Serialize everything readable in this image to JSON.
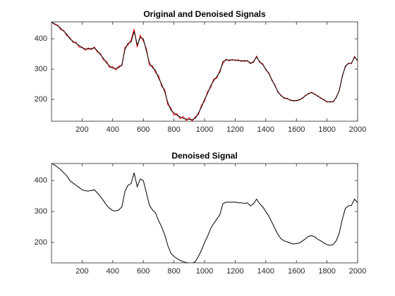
{
  "chart_data": [
    {
      "type": "line",
      "title": "Original and Denoised Signals",
      "x": [
        0,
        20,
        40,
        60,
        80,
        100,
        120,
        140,
        160,
        180,
        200,
        220,
        240,
        260,
        280,
        300,
        320,
        340,
        360,
        380,
        400,
        420,
        440,
        460,
        480,
        500,
        520,
        540,
        560,
        580,
        600,
        620,
        640,
        660,
        680,
        700,
        720,
        740,
        760,
        780,
        800,
        820,
        840,
        860,
        880,
        900,
        920,
        940,
        960,
        980,
        1000,
        1020,
        1040,
        1060,
        1080,
        1100,
        1120,
        1140,
        1160,
        1180,
        1200,
        1220,
        1240,
        1260,
        1280,
        1300,
        1320,
        1340,
        1360,
        1380,
        1400,
        1420,
        1440,
        1460,
        1480,
        1500,
        1520,
        1540,
        1560,
        1580,
        1600,
        1620,
        1640,
        1660,
        1680,
        1700,
        1720,
        1740,
        1760,
        1780,
        1800,
        1820,
        1840,
        1860,
        1880,
        1900,
        1920,
        1940,
        1960,
        1980,
        2000
      ],
      "series": [
        {
          "color": "#ff0000",
          "values": [
            456,
            447,
            446,
            430,
            428,
            410,
            404,
            388,
            389,
            372,
            373,
            362,
            370,
            364,
            373,
            356,
            352,
            330,
            325,
            305,
            308,
            297,
            310,
            311,
            372,
            380,
            396,
            432,
            372,
            412,
            393,
            368,
            312,
            311,
            288,
            278,
            243,
            232,
            182,
            172,
            148,
            153,
            136,
            144,
            130,
            140,
            128,
            143,
            150,
            181,
            194,
            226,
            239,
            268,
            270,
            296,
            318,
            333,
            327,
            332,
            328,
            331,
            325,
            329,
            326,
            321,
            322,
            343,
            322,
            318,
            297,
            288,
            262,
            248,
            222,
            214,
            203,
            204,
            196,
            197,
            195,
            200,
            203,
            214,
            218,
            224,
            216,
            212,
            203,
            200,
            191,
            193,
            191,
            207,
            228,
            278,
            307,
            320,
            318,
            342,
            326
          ]
        },
        {
          "color": "#000000",
          "values": [
            455,
            450,
            443,
            435,
            425,
            415,
            400,
            392,
            385,
            378,
            370,
            367,
            366,
            368,
            370,
            360,
            348,
            335,
            320,
            310,
            303,
            302,
            305,
            315,
            365,
            385,
            390,
            425,
            380,
            405,
            400,
            360,
            320,
            305,
            295,
            270,
            250,
            225,
            190,
            165,
            155,
            148,
            142,
            138,
            135,
            134,
            133,
            138,
            155,
            175,
            200,
            220,
            245,
            262,
            275,
            290,
            325,
            330,
            330,
            330,
            330,
            328,
            328,
            326,
            328,
            318,
            325,
            340,
            325,
            315,
            300,
            285,
            265,
            245,
            225,
            212,
            205,
            202,
            198,
            195,
            197,
            198,
            205,
            212,
            220,
            222,
            218,
            210,
            205,
            198,
            193,
            191,
            193,
            205,
            230,
            275,
            310,
            318,
            320,
            340,
            328
          ]
        }
      ],
      "xlim": [
        0,
        2000
      ],
      "ylim": [
        128,
        456
      ],
      "xticks": [
        200,
        400,
        600,
        800,
        1000,
        1200,
        1400,
        1600,
        1800,
        2000
      ],
      "yticks": [
        200,
        300,
        400
      ]
    },
    {
      "type": "line",
      "title": "Denoised Signal",
      "x": [
        0,
        20,
        40,
        60,
        80,
        100,
        120,
        140,
        160,
        180,
        200,
        220,
        240,
        260,
        280,
        300,
        320,
        340,
        360,
        380,
        400,
        420,
        440,
        460,
        480,
        500,
        520,
        540,
        560,
        580,
        600,
        620,
        640,
        660,
        680,
        700,
        720,
        740,
        760,
        780,
        800,
        820,
        840,
        860,
        880,
        900,
        920,
        940,
        960,
        980,
        1000,
        1020,
        1040,
        1060,
        1080,
        1100,
        1120,
        1140,
        1160,
        1180,
        1200,
        1220,
        1240,
        1260,
        1280,
        1300,
        1320,
        1340,
        1360,
        1380,
        1400,
        1420,
        1440,
        1460,
        1480,
        1500,
        1520,
        1540,
        1560,
        1580,
        1600,
        1620,
        1640,
        1660,
        1680,
        1700,
        1720,
        1740,
        1760,
        1780,
        1800,
        1820,
        1840,
        1860,
        1880,
        1900,
        1920,
        1940,
        1960,
        1980,
        2000
      ],
      "series": [
        {
          "color": "#000000",
          "values": [
            455,
            450,
            443,
            435,
            425,
            415,
            400,
            392,
            385,
            378,
            370,
            367,
            366,
            368,
            370,
            360,
            348,
            335,
            320,
            310,
            303,
            302,
            305,
            315,
            365,
            385,
            390,
            425,
            380,
            405,
            400,
            360,
            320,
            305,
            295,
            270,
            250,
            225,
            190,
            165,
            155,
            148,
            142,
            138,
            135,
            134,
            133,
            138,
            155,
            175,
            200,
            220,
            245,
            262,
            275,
            290,
            325,
            330,
            330,
            330,
            330,
            328,
            328,
            326,
            328,
            318,
            325,
            340,
            325,
            315,
            300,
            285,
            265,
            245,
            225,
            212,
            205,
            202,
            198,
            195,
            197,
            198,
            205,
            212,
            220,
            222,
            218,
            210,
            205,
            198,
            193,
            191,
            193,
            205,
            230,
            275,
            310,
            318,
            320,
            340,
            328
          ]
        }
      ],
      "xlim": [
        0,
        2000
      ],
      "ylim": [
        134,
        455
      ],
      "xticks": [
        200,
        400,
        600,
        800,
        1000,
        1200,
        1400,
        1600,
        1800,
        2000
      ],
      "yticks": [
        200,
        300,
        400
      ]
    }
  ]
}
